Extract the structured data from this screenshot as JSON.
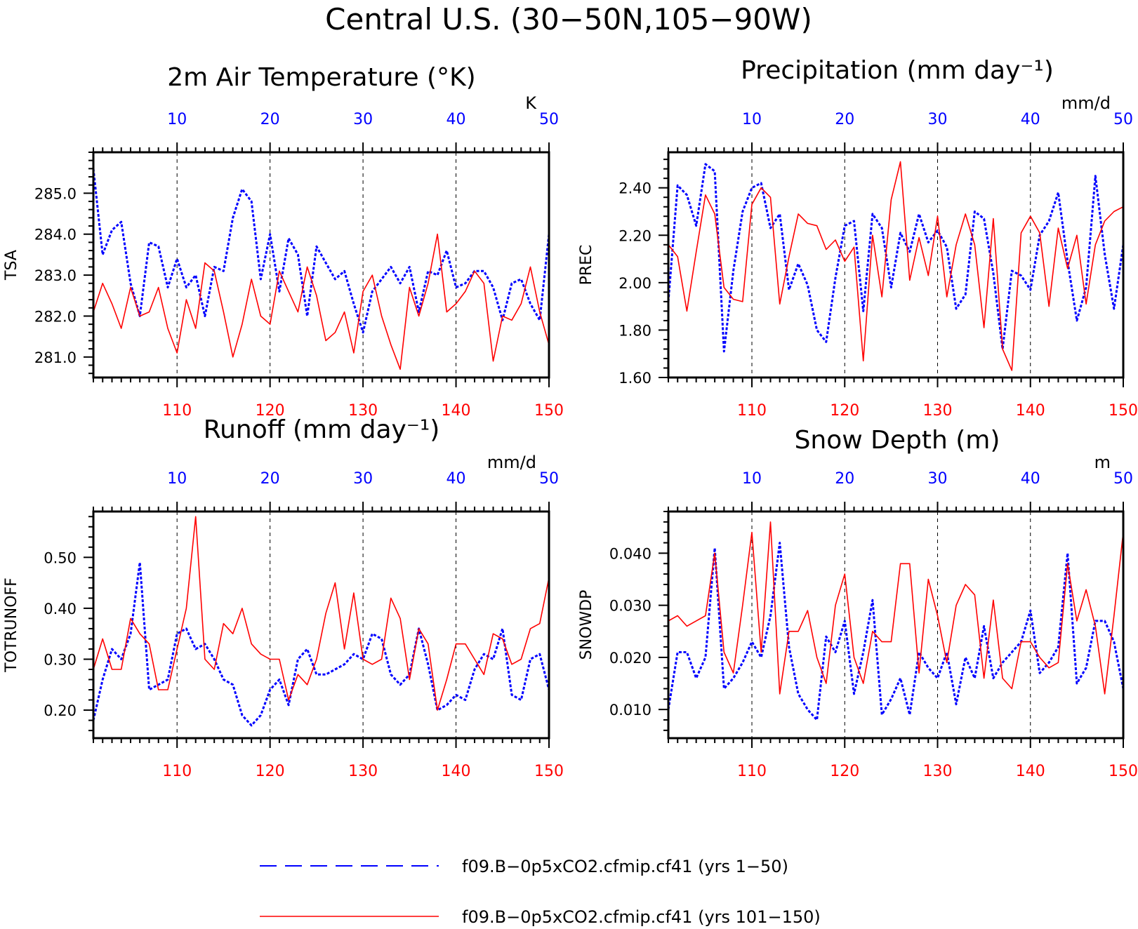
{
  "title": "Central U.S. (30−50N,105−90W)",
  "colors": {
    "series_a": "#0000ff",
    "series_b": "#ff0000"
  },
  "legend": [
    {
      "label": "f09.B−0p5xCO2.cfmip.cf41 (yrs 1−50)",
      "color": "#0000ff",
      "style": "dashed"
    },
    {
      "label": "f09.B−0p5xCO2.cfmip.cf41 (yrs 101−150)",
      "color": "#ff0000",
      "style": "solid"
    }
  ],
  "chart_data": [
    {
      "type": "line",
      "title": "2m Air Temperature (°K)",
      "ylabel": "TSA",
      "units": "K",
      "top_axis": {
        "xlim": [
          1,
          50
        ],
        "ticks": [
          10,
          20,
          30,
          40,
          50
        ]
      },
      "bottom_axis": {
        "xlim": [
          101,
          150
        ],
        "ticks": [
          110,
          120,
          130,
          140,
          150
        ]
      },
      "ylim": [
        280.5,
        286.0
      ],
      "yticks": [
        281.0,
        282.0,
        283.0,
        284.0,
        285.0
      ],
      "ytick_labels": [
        "281.0",
        "282.0",
        "283.0",
        "284.0",
        "285.0"
      ],
      "series": [
        {
          "name": "f09.B−0p5xCO2.cfmip.cf41 (yrs 1−50)",
          "axis": "top",
          "values": [
            285.6,
            283.5,
            284.1,
            284.3,
            282.8,
            282.0,
            283.8,
            283.7,
            282.7,
            283.4,
            282.7,
            283.0,
            282.0,
            283.2,
            283.1,
            284.4,
            285.1,
            284.8,
            282.9,
            284.0,
            282.6,
            283.9,
            283.5,
            282.0,
            283.7,
            283.3,
            282.9,
            283.1,
            282.3,
            281.6,
            282.6,
            282.9,
            283.2,
            282.8,
            283.2,
            282.1,
            283.1,
            283.0,
            283.6,
            282.7,
            282.8,
            283.1,
            283.1,
            282.7,
            281.9,
            282.8,
            282.9,
            282.3,
            281.9,
            284.0
          ]
        },
        {
          "name": "f09.B−0p5xCO2.cfmip.cf41 (yrs 101−150)",
          "axis": "bottom",
          "values": [
            282.1,
            282.8,
            282.3,
            281.7,
            282.7,
            282.0,
            282.1,
            282.7,
            281.7,
            281.1,
            282.4,
            281.7,
            283.3,
            283.1,
            282.1,
            281.0,
            281.8,
            282.9,
            282.0,
            281.8,
            283.1,
            282.6,
            282.1,
            283.2,
            282.5,
            281.4,
            281.6,
            282.1,
            281.1,
            282.6,
            283.0,
            282.0,
            281.3,
            280.7,
            282.7,
            282.0,
            282.8,
            284.0,
            282.1,
            282.3,
            282.6,
            283.1,
            282.8,
            280.9,
            282.0,
            281.9,
            282.3,
            283.2,
            282.1,
            281.3
          ]
        }
      ]
    },
    {
      "type": "line",
      "title": "Precipitation (mm day⁻¹)",
      "ylabel": "PREC",
      "units": "mm/d",
      "top_axis": {
        "xlim": [
          1,
          50
        ],
        "ticks": [
          10,
          20,
          30,
          40,
          50
        ]
      },
      "bottom_axis": {
        "xlim": [
          101,
          150
        ],
        "ticks": [
          110,
          120,
          130,
          140,
          150
        ]
      },
      "ylim": [
        1.6,
        2.55
      ],
      "yticks": [
        1.6,
        1.8,
        2.0,
        2.2,
        2.4
      ],
      "ytick_labels": [
        "1.60",
        "1.80",
        "2.00",
        "2.20",
        "2.40"
      ],
      "series": [
        {
          "name": "f09.B−0p5xCO2.cfmip.cf41 (yrs 1−50)",
          "axis": "top",
          "values": [
            1.92,
            2.41,
            2.37,
            2.24,
            2.5,
            2.47,
            1.71,
            2.05,
            2.3,
            2.4,
            2.42,
            2.23,
            2.29,
            1.97,
            2.08,
            1.99,
            1.8,
            1.75,
            2.02,
            2.24,
            2.26,
            1.88,
            2.29,
            2.23,
            1.98,
            2.21,
            2.13,
            2.29,
            2.17,
            2.22,
            2.15,
            1.89,
            1.95,
            2.3,
            2.27,
            2.04,
            1.72,
            2.05,
            2.03,
            1.97,
            2.2,
            2.26,
            2.38,
            2.09,
            1.84,
            1.98,
            2.45,
            2.12,
            1.89,
            2.16
          ]
        },
        {
          "name": "f09.B−0p5xCO2.cfmip.cf41 (yrs 101−150)",
          "axis": "bottom",
          "values": [
            2.16,
            2.11,
            1.88,
            2.13,
            2.37,
            2.29,
            1.98,
            1.93,
            1.92,
            2.33,
            2.4,
            2.36,
            1.91,
            2.11,
            2.29,
            2.25,
            2.24,
            2.14,
            2.18,
            2.09,
            2.15,
            1.67,
            2.2,
            1.94,
            2.35,
            2.51,
            2.01,
            2.19,
            2.03,
            2.28,
            1.94,
            2.16,
            2.29,
            2.16,
            1.81,
            2.27,
            1.72,
            1.63,
            2.21,
            2.28,
            2.21,
            1.9,
            2.23,
            2.06,
            2.2,
            1.91,
            2.16,
            2.26,
            2.3,
            2.32
          ]
        }
      ]
    },
    {
      "type": "line",
      "title": "Runoff (mm day⁻¹)",
      "ylabel": "TOTRUNOFF",
      "units": "mm/d",
      "top_axis": {
        "xlim": [
          1,
          50
        ],
        "ticks": [
          10,
          20,
          30,
          40,
          50
        ]
      },
      "bottom_axis": {
        "xlim": [
          101,
          150
        ],
        "ticks": [
          110,
          120,
          130,
          140,
          150
        ]
      },
      "ylim": [
        0.145,
        0.59
      ],
      "yticks": [
        0.2,
        0.3,
        0.4,
        0.5
      ],
      "ytick_labels": [
        "0.20",
        "0.30",
        "0.40",
        "0.50"
      ],
      "series": [
        {
          "name": "f09.B−0p5xCO2.cfmip.cf41 (yrs 1−50)",
          "axis": "top",
          "values": [
            0.18,
            0.26,
            0.32,
            0.3,
            0.35,
            0.49,
            0.24,
            0.25,
            0.26,
            0.35,
            0.36,
            0.32,
            0.33,
            0.3,
            0.26,
            0.25,
            0.19,
            0.17,
            0.19,
            0.24,
            0.26,
            0.21,
            0.3,
            0.32,
            0.27,
            0.27,
            0.28,
            0.29,
            0.31,
            0.3,
            0.35,
            0.34,
            0.27,
            0.25,
            0.27,
            0.36,
            0.29,
            0.2,
            0.21,
            0.23,
            0.22,
            0.28,
            0.31,
            0.3,
            0.36,
            0.23,
            0.22,
            0.3,
            0.31,
            0.24
          ]
        },
        {
          "name": "f09.B−0p5xCO2.cfmip.cf41 (yrs 101−150)",
          "axis": "bottom",
          "values": [
            0.28,
            0.34,
            0.28,
            0.28,
            0.38,
            0.35,
            0.33,
            0.24,
            0.24,
            0.32,
            0.4,
            0.58,
            0.3,
            0.28,
            0.37,
            0.35,
            0.4,
            0.33,
            0.31,
            0.3,
            0.3,
            0.22,
            0.27,
            0.25,
            0.3,
            0.39,
            0.45,
            0.32,
            0.43,
            0.3,
            0.29,
            0.3,
            0.42,
            0.38,
            0.26,
            0.36,
            0.33,
            0.2,
            0.26,
            0.33,
            0.33,
            0.3,
            0.27,
            0.35,
            0.34,
            0.29,
            0.3,
            0.36,
            0.37,
            0.46
          ]
        }
      ]
    },
    {
      "type": "line",
      "title": "Snow Depth (m)",
      "ylabel": "SNOWDP",
      "units": "m",
      "top_axis": {
        "xlim": [
          1,
          50
        ],
        "ticks": [
          10,
          20,
          30,
          40,
          50
        ]
      },
      "bottom_axis": {
        "xlim": [
          101,
          150
        ],
        "ticks": [
          110,
          120,
          130,
          140,
          150
        ]
      },
      "ylim": [
        0.0045,
        0.048
      ],
      "yticks": [
        0.01,
        0.02,
        0.03,
        0.04
      ],
      "ytick_labels": [
        "0.010",
        "0.020",
        "0.030",
        "0.040"
      ],
      "series": [
        {
          "name": "f09.B−0p5xCO2.cfmip.cf41 (yrs 1−50)",
          "axis": "top",
          "values": [
            0.01,
            0.021,
            0.021,
            0.016,
            0.02,
            0.041,
            0.014,
            0.016,
            0.019,
            0.023,
            0.02,
            0.028,
            0.042,
            0.022,
            0.013,
            0.01,
            0.008,
            0.024,
            0.021,
            0.027,
            0.013,
            0.021,
            0.031,
            0.009,
            0.012,
            0.016,
            0.009,
            0.021,
            0.018,
            0.016,
            0.021,
            0.011,
            0.02,
            0.016,
            0.026,
            0.016,
            0.019,
            0.021,
            0.023,
            0.029,
            0.017,
            0.019,
            0.022,
            0.04,
            0.015,
            0.018,
            0.027,
            0.027,
            0.023,
            0.014
          ]
        },
        {
          "name": "f09.B−0p5xCO2.cfmip.cf41 (yrs 101−150)",
          "axis": "bottom",
          "values": [
            0.027,
            0.028,
            0.026,
            0.027,
            0.028,
            0.04,
            0.021,
            0.017,
            0.03,
            0.044,
            0.021,
            0.046,
            0.013,
            0.025,
            0.025,
            0.029,
            0.02,
            0.015,
            0.03,
            0.036,
            0.02,
            0.015,
            0.025,
            0.023,
            0.023,
            0.038,
            0.038,
            0.017,
            0.035,
            0.028,
            0.019,
            0.03,
            0.034,
            0.032,
            0.016,
            0.031,
            0.016,
            0.014,
            0.023,
            0.023,
            0.02,
            0.018,
            0.019,
            0.038,
            0.027,
            0.033,
            0.026,
            0.013,
            0.028,
            0.044
          ]
        }
      ]
    }
  ]
}
